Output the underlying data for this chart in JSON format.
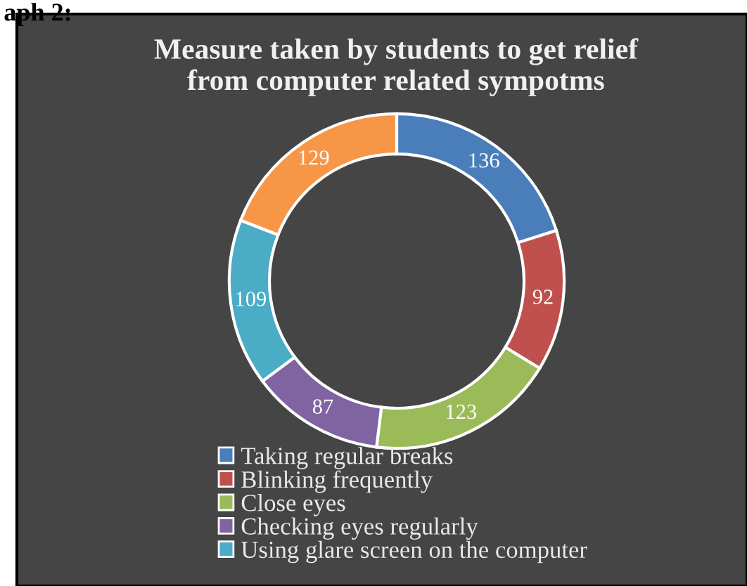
{
  "chart_data": {
    "type": "donut",
    "title": "Measure taken by students to get relief\nfrom computer related sympotms",
    "annotations": [
      "aph 2:"
    ],
    "categories": [
      "Taking regular breaks",
      "Blinking frequently",
      "Close eyes",
      "Checking eyes regularly",
      "Using glare screen on the computer",
      null
    ],
    "values": [
      136,
      92,
      123,
      87,
      109,
      129
    ],
    "colors": [
      "#4a7ebb",
      "#c0504d",
      "#9bbb59",
      "#8064a2",
      "#4bacc6",
      "#f79646"
    ],
    "data_labels": true,
    "legend": "bottom"
  }
}
